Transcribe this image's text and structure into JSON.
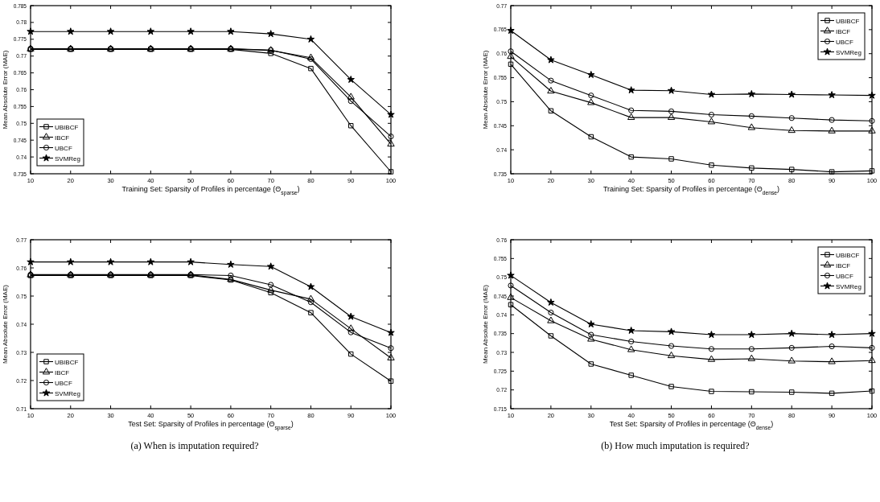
{
  "chart_data": [
    {
      "type": "line",
      "xlabel": "Training Set: Sparsity of Profiles in percentage (Θ$_{sparse}$)",
      "ylabel": "Mean Absolute Error (MAE)",
      "x": [
        10,
        20,
        30,
        40,
        50,
        60,
        70,
        80,
        90,
        100
      ],
      "xlim": [
        10,
        100
      ],
      "xticks": [
        10,
        20,
        30,
        40,
        50,
        60,
        70,
        80,
        90,
        100
      ],
      "ylim": [
        0.735,
        0.785
      ],
      "yticks": [
        0.735,
        0.74,
        0.745,
        0.75,
        0.755,
        0.76,
        0.765,
        0.77,
        0.775,
        0.78,
        0.785
      ],
      "legend": "bottom left",
      "grid": false,
      "line_style": "solid",
      "series": [
        {
          "name": "UBIBCF",
          "color": "#000000",
          "marker": "square",
          "values": [
            0.772,
            0.772,
            0.772,
            0.772,
            0.772,
            0.772,
            0.7708,
            0.7663,
            0.7493,
            0.7356
          ]
        },
        {
          "name": "IBCF",
          "color": "#000000",
          "marker": "triangle",
          "values": [
            0.7721,
            0.7721,
            0.7721,
            0.7721,
            0.7721,
            0.7721,
            0.7717,
            0.7695,
            0.7578,
            0.7438
          ]
        },
        {
          "name": "UBCF",
          "color": "#000000",
          "marker": "circle",
          "values": [
            0.7722,
            0.7722,
            0.7722,
            0.7722,
            0.7722,
            0.7722,
            0.7718,
            0.7691,
            0.7566,
            0.7461
          ]
        },
        {
          "name": "SVMReg",
          "color": "#000000",
          "marker": "star",
          "values": [
            0.7773,
            0.7773,
            0.7773,
            0.7773,
            0.7773,
            0.7773,
            0.7766,
            0.775,
            0.763,
            0.7526
          ]
        }
      ]
    },
    {
      "type": "line",
      "xlabel": "Training Set: Sparsity of Profiles in percentage (Θ$_{dense}$)",
      "ylabel": "Mean Absolute Error (MAE)",
      "x": [
        10,
        20,
        30,
        40,
        50,
        60,
        70,
        80,
        90,
        100
      ],
      "xlim": [
        10,
        100
      ],
      "xticks": [
        10,
        20,
        30,
        40,
        50,
        60,
        70,
        80,
        90,
        100
      ],
      "ylim": [
        0.735,
        0.77
      ],
      "yticks": [
        0.735,
        0.74,
        0.745,
        0.75,
        0.755,
        0.76,
        0.765,
        0.77
      ],
      "legend": "top right",
      "grid": false,
      "line_style": "solid",
      "series": [
        {
          "name": "UBIBCF",
          "color": "#000000",
          "marker": "square",
          "values": [
            0.7578,
            0.7481,
            0.7427,
            0.7385,
            0.7381,
            0.7368,
            0.7362,
            0.7359,
            0.7354,
            0.7356
          ]
        },
        {
          "name": "IBCF",
          "color": "#000000",
          "marker": "triangle",
          "values": [
            0.7594,
            0.7522,
            0.7498,
            0.7467,
            0.7467,
            0.7458,
            0.7446,
            0.744,
            0.7439,
            0.7439
          ]
        },
        {
          "name": "UBCF",
          "color": "#000000",
          "marker": "circle",
          "values": [
            0.7605,
            0.7544,
            0.7513,
            0.7482,
            0.748,
            0.7473,
            0.747,
            0.7466,
            0.7462,
            0.746
          ]
        },
        {
          "name": "SVMReg",
          "color": "#000000",
          "marker": "star",
          "values": [
            0.7648,
            0.7587,
            0.7556,
            0.7524,
            0.7523,
            0.7515,
            0.7516,
            0.7515,
            0.7514,
            0.7513
          ]
        }
      ]
    },
    {
      "type": "line",
      "xlabel": "Test Set: Sparsity of Profiles in percentage (Θ$_{sparse}$)",
      "ylabel": "Mean Absolute Error (MAE)",
      "annotations": [
        "(a)  When is imputation required?"
      ],
      "x": [
        10,
        20,
        30,
        40,
        50,
        60,
        70,
        80,
        90,
        100
      ],
      "xlim": [
        10,
        100
      ],
      "xticks": [
        10,
        20,
        30,
        40,
        50,
        60,
        70,
        80,
        90,
        100
      ],
      "ylim": [
        0.71,
        0.77
      ],
      "yticks": [
        0.71,
        0.72,
        0.73,
        0.74,
        0.75,
        0.76,
        0.77
      ],
      "legend": "bottom left",
      "grid": false,
      "line_style": "solid",
      "series": [
        {
          "name": "UBIBCF",
          "color": "#000000",
          "marker": "square",
          "values": [
            0.7573,
            0.7573,
            0.7573,
            0.7573,
            0.7573,
            0.7557,
            0.7512,
            0.7441,
            0.7294,
            0.7198
          ]
        },
        {
          "name": "IBCF",
          "color": "#000000",
          "marker": "triangle",
          "values": [
            0.7575,
            0.7575,
            0.7575,
            0.7575,
            0.7575,
            0.7559,
            0.7521,
            0.7489,
            0.7384,
            0.728
          ]
        },
        {
          "name": "UBCF",
          "color": "#000000",
          "marker": "circle",
          "values": [
            0.7576,
            0.7576,
            0.7576,
            0.7576,
            0.7576,
            0.7573,
            0.754,
            0.7478,
            0.7371,
            0.7315
          ]
        },
        {
          "name": "SVMReg",
          "color": "#000000",
          "marker": "star",
          "values": [
            0.7621,
            0.7621,
            0.7621,
            0.7621,
            0.7621,
            0.7612,
            0.7605,
            0.7533,
            0.7427,
            0.737
          ]
        }
      ]
    },
    {
      "type": "line",
      "xlabel": "Test Set: Sparsity of Profiles in percentage (Θ$_{dense}$)",
      "ylabel": "Mean Absolute Error (MAE)",
      "annotations": [
        "(b)  How much imputation is required?"
      ],
      "x": [
        10,
        20,
        30,
        40,
        50,
        60,
        70,
        80,
        90,
        100
      ],
      "xlim": [
        10,
        100
      ],
      "xticks": [
        10,
        20,
        30,
        40,
        50,
        60,
        70,
        80,
        90,
        100
      ],
      "ylim": [
        0.715,
        0.76
      ],
      "yticks": [
        0.715,
        0.72,
        0.725,
        0.73,
        0.735,
        0.74,
        0.745,
        0.75,
        0.755,
        0.76
      ],
      "legend": "top right",
      "grid": false,
      "line_style": "solid",
      "series": [
        {
          "name": "UBIBCF",
          "color": "#000000",
          "marker": "square",
          "values": [
            0.7427,
            0.7344,
            0.7269,
            0.7239,
            0.7209,
            0.7196,
            0.7195,
            0.7194,
            0.7191,
            0.7197
          ]
        },
        {
          "name": "IBCF",
          "color": "#000000",
          "marker": "triangle",
          "values": [
            0.7446,
            0.7384,
            0.7335,
            0.7307,
            0.7291,
            0.7281,
            0.7283,
            0.7277,
            0.7275,
            0.7278
          ]
        },
        {
          "name": "UBCF",
          "color": "#000000",
          "marker": "circle",
          "values": [
            0.7478,
            0.7406,
            0.7347,
            0.7329,
            0.7317,
            0.7309,
            0.7309,
            0.7312,
            0.7316,
            0.7312
          ]
        },
        {
          "name": "SVMReg",
          "color": "#000000",
          "marker": "star",
          "values": [
            0.7505,
            0.7433,
            0.7375,
            0.7358,
            0.7355,
            0.7347,
            0.7347,
            0.735,
            0.7347,
            0.735
          ]
        }
      ]
    }
  ]
}
